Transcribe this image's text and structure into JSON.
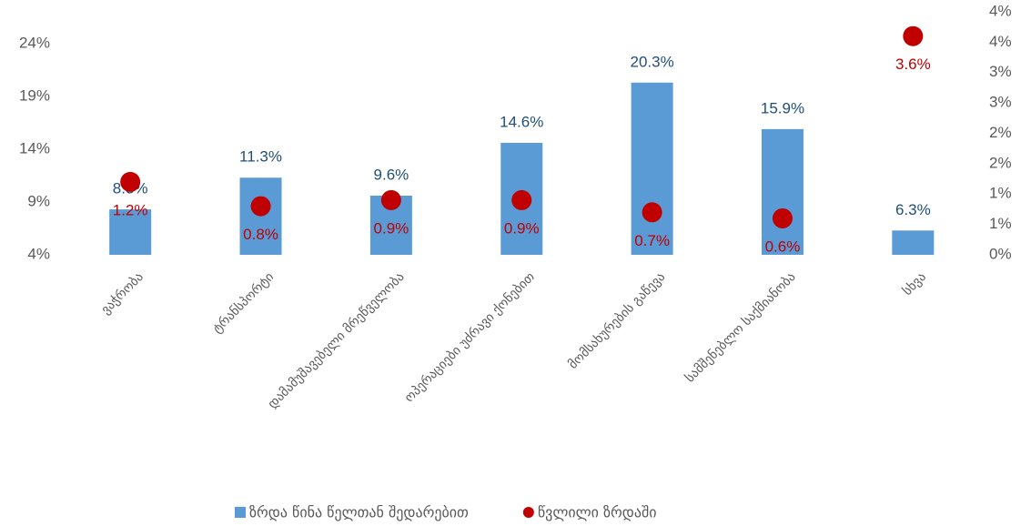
{
  "chart_data": {
    "type": "bar",
    "categories": [
      "ვაჭრობა",
      "ტრანსპორტი",
      "დამამუშავებელი მრეწველობა",
      "ოპერაციები უძრავი ქონებით",
      "მომსახურების გაწევა",
      "სამშენებლო საქმიანობა",
      "სხვა"
    ],
    "series": [
      {
        "name": "ზრდა წინა წელთან შედარებით",
        "type": "bar",
        "color": "#5b9bd5",
        "values": [
          8.3,
          11.3,
          9.6,
          14.6,
          20.3,
          15.9,
          6.3
        ],
        "value_labels": [
          "8.3%",
          "11.3%",
          "9.6%",
          "14.6%",
          "20.3%",
          "15.9%",
          "6.3%"
        ]
      },
      {
        "name": "წვლილი ზრდაში",
        "type": "scatter",
        "axis": "y2",
        "color": "#c00000",
        "values": [
          1.2,
          0.8,
          0.9,
          0.9,
          0.7,
          0.6,
          3.6
        ],
        "value_labels": [
          "1.2%",
          "0.8%",
          "0.9%",
          "0.9%",
          "0.7%",
          "0.6%",
          "3.6%"
        ]
      }
    ],
    "ylim": [
      4,
      27
    ],
    "yticks": [
      {
        "value": 4,
        "label": "4%"
      },
      {
        "value": 9,
        "label": "9%"
      },
      {
        "value": 14,
        "label": "14%"
      },
      {
        "value": 19,
        "label": "19%"
      },
      {
        "value": 24,
        "label": "24%"
      }
    ],
    "y2lim": [
      0,
      4
    ],
    "y2ticks": [
      {
        "value": 0,
        "label": "0%"
      },
      {
        "value": 0.5,
        "label": "1%"
      },
      {
        "value": 1,
        "label": "1%"
      },
      {
        "value": 1.5,
        "label": "2%"
      },
      {
        "value": 2,
        "label": "2%"
      },
      {
        "value": 2.5,
        "label": "3%"
      },
      {
        "value": 3,
        "label": "3%"
      },
      {
        "value": 3.5,
        "label": "4%"
      },
      {
        "value": 4,
        "label": "4%"
      }
    ],
    "grid": false,
    "legend": "bottom"
  }
}
